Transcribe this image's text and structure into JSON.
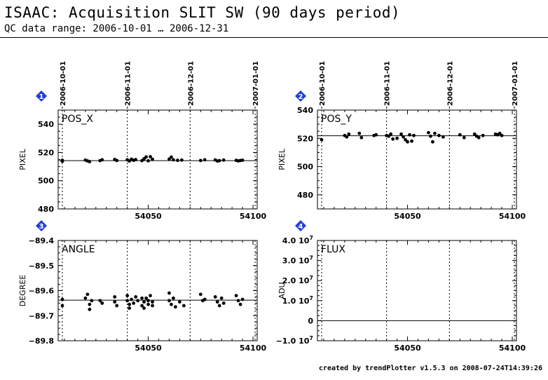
{
  "header": {
    "title": "ISAAC: Acquisition SLIT SW (90 days period)",
    "subtitle": "QC data range: 2006-10-01 … 2006-12-31"
  },
  "footer": {
    "text": "created by trendPlotter v1.5.3 on 2008-07-24T14:39:26"
  },
  "colors": {
    "badge": "#1f3fd6",
    "marker": "#000000"
  },
  "chart_data": [
    {
      "type": "scatter",
      "badge": "1",
      "panel_label": "POS_X",
      "ylabel": "PIXEL",
      "xlim": [
        54007,
        54102
      ],
      "ylim": [
        480,
        550
      ],
      "yticks": [
        {
          "v": 480,
          "label": "480"
        },
        {
          "v": 500,
          "label": "500"
        },
        {
          "v": 520,
          "label": "520"
        },
        {
          "v": 540,
          "label": "540"
        }
      ],
      "xticks": [
        {
          "v": 54050,
          "label": "54050"
        },
        {
          "v": 54100,
          "label": "54100"
        }
      ],
      "top_date_labels": [
        {
          "v": 54009,
          "label": "2006-10-01"
        },
        {
          "v": 54040,
          "label": "2006-11-01"
        },
        {
          "v": 54070,
          "label": "2006-12-01"
        },
        {
          "v": 54101,
          "label": "2007-01-01"
        }
      ],
      "reference_line": 514.2,
      "points": [
        [
          54009,
          513.8
        ],
        [
          54009,
          514.5
        ],
        [
          54020,
          514.6
        ],
        [
          54021,
          514.0
        ],
        [
          54022,
          513.5
        ],
        [
          54027,
          514.2
        ],
        [
          54028,
          514.8
        ],
        [
          54034,
          515.0
        ],
        [
          54035,
          514.3
        ],
        [
          54040,
          514.8
        ],
        [
          54041,
          513.9
        ],
        [
          54042,
          515.2
        ],
        [
          54043,
          514.4
        ],
        [
          54044,
          514.9
        ],
        [
          54047,
          514.2
        ],
        [
          54048,
          515.5
        ],
        [
          54049,
          516.8
        ],
        [
          54050,
          514.1
        ],
        [
          54051,
          517.0
        ],
        [
          54052,
          515.2
        ],
        [
          54060,
          515.3
        ],
        [
          54061,
          516.7
        ],
        [
          54062,
          514.8
        ],
        [
          54064,
          514.4
        ],
        [
          54066,
          514.6
        ],
        [
          54075,
          514.3
        ],
        [
          54077,
          514.8
        ],
        [
          54082,
          514.7
        ],
        [
          54083,
          513.9
        ],
        [
          54084,
          514.2
        ],
        [
          54086,
          514.6
        ],
        [
          54092,
          514.4
        ],
        [
          54093,
          514.0
        ],
        [
          54094,
          514.3
        ],
        [
          54095,
          514.5
        ]
      ]
    },
    {
      "type": "scatter",
      "badge": "2",
      "panel_label": "POS_Y",
      "ylabel": "PIXEL",
      "xlim": [
        54007,
        54102
      ],
      "ylim": [
        470,
        540
      ],
      "yticks": [
        {
          "v": 480,
          "label": "480"
        },
        {
          "v": 500,
          "label": "500"
        },
        {
          "v": 520,
          "label": "520"
        },
        {
          "v": 540,
          "label": "540"
        }
      ],
      "xticks": [
        {
          "v": 54050,
          "label": "54050"
        },
        {
          "v": 54100,
          "label": "54100"
        }
      ],
      "top_date_labels": [
        {
          "v": 54009,
          "label": "2006-10-01"
        },
        {
          "v": 54040,
          "label": "2006-11-01"
        },
        {
          "v": 54070,
          "label": "2006-12-01"
        },
        {
          "v": 54101,
          "label": "2007-01-01"
        }
      ],
      "reference_line": 521.8,
      "points": [
        [
          54009,
          519.0
        ],
        [
          54020,
          522.0
        ],
        [
          54021,
          521.0
        ],
        [
          54022,
          523.0
        ],
        [
          54027,
          523.5
        ],
        [
          54028,
          520.5
        ],
        [
          54034,
          522.0
        ],
        [
          54035,
          522.5
        ],
        [
          54040,
          522.0
        ],
        [
          54041,
          521.5
        ],
        [
          54042,
          523.0
        ],
        [
          54043,
          519.5
        ],
        [
          54045,
          520.0
        ],
        [
          54047,
          523.0
        ],
        [
          54048,
          521.0
        ],
        [
          54049,
          519.0
        ],
        [
          54050,
          517.5
        ],
        [
          54051,
          522.5
        ],
        [
          54052,
          518.0
        ],
        [
          54053,
          522.0
        ],
        [
          54060,
          524.0
        ],
        [
          54061,
          521.5
        ],
        [
          54062,
          517.5
        ],
        [
          54063,
          523.5
        ],
        [
          54065,
          522.0
        ],
        [
          54067,
          521.0
        ],
        [
          54075,
          522.5
        ],
        [
          54077,
          520.5
        ],
        [
          54082,
          523.0
        ],
        [
          54083,
          521.5
        ],
        [
          54084,
          520.5
        ],
        [
          54086,
          522.0
        ],
        [
          54092,
          523.0
        ],
        [
          54093,
          522.5
        ],
        [
          54094,
          523.5
        ],
        [
          54095,
          522.0
        ]
      ]
    },
    {
      "type": "scatter",
      "badge": "3",
      "panel_label": "ANGLE",
      "ylabel": "DEGREE",
      "xlim": [
        54007,
        54102
      ],
      "ylim": [
        -89.8,
        -89.4
      ],
      "yticks": [
        {
          "v": -89.8,
          "label": "−89.8"
        },
        {
          "v": -89.7,
          "label": "−89.7"
        },
        {
          "v": -89.6,
          "label": "−89.6"
        },
        {
          "v": -89.5,
          "label": "−89.5"
        },
        {
          "v": -89.4,
          "label": "−89.4"
        }
      ],
      "xticks": [
        {
          "v": 54050,
          "label": "54050"
        },
        {
          "v": 54100,
          "label": "54100"
        }
      ],
      "date_lines": [
        54009,
        54040,
        54070,
        54101
      ],
      "reference_line": -89.638,
      "points": [
        [
          54009,
          -89.635
        ],
        [
          54009,
          -89.66
        ],
        [
          54020,
          -89.63
        ],
        [
          54021,
          -89.615
        ],
        [
          54022,
          -89.655
        ],
        [
          54022,
          -89.675
        ],
        [
          54023,
          -89.64
        ],
        [
          54027,
          -89.64
        ],
        [
          54028,
          -89.65
        ],
        [
          54034,
          -89.625
        ],
        [
          54034,
          -89.645
        ],
        [
          54035,
          -89.66
        ],
        [
          54040,
          -89.62
        ],
        [
          54040,
          -89.64
        ],
        [
          54041,
          -89.655
        ],
        [
          54041,
          -89.67
        ],
        [
          54042,
          -89.635
        ],
        [
          54043,
          -89.65
        ],
        [
          54044,
          -89.625
        ],
        [
          54045,
          -89.64
        ],
        [
          54047,
          -89.63
        ],
        [
          54047,
          -89.66
        ],
        [
          54048,
          -89.645
        ],
        [
          54048,
          -89.67
        ],
        [
          54049,
          -89.63
        ],
        [
          54050,
          -89.655
        ],
        [
          54050,
          -89.64
        ],
        [
          54051,
          -89.62
        ],
        [
          54052,
          -89.66
        ],
        [
          54052,
          -89.645
        ],
        [
          54060,
          -89.61
        ],
        [
          54060,
          -89.64
        ],
        [
          54061,
          -89.655
        ],
        [
          54062,
          -89.63
        ],
        [
          54063,
          -89.665
        ],
        [
          54065,
          -89.645
        ],
        [
          54067,
          -89.66
        ],
        [
          54075,
          -89.615
        ],
        [
          54076,
          -89.64
        ],
        [
          54077,
          -89.635
        ],
        [
          54082,
          -89.625
        ],
        [
          54083,
          -89.645
        ],
        [
          54084,
          -89.66
        ],
        [
          54085,
          -89.63
        ],
        [
          54086,
          -89.65
        ],
        [
          54092,
          -89.62
        ],
        [
          54093,
          -89.64
        ],
        [
          54094,
          -89.655
        ],
        [
          54095,
          -89.635
        ]
      ]
    },
    {
      "type": "scatter",
      "badge": "4",
      "panel_label": "FLUX",
      "ylabel": "ADU",
      "xlim": [
        54007,
        54102
      ],
      "ylim": [
        -10000000.0,
        40000000.0
      ],
      "yticks": [
        {
          "v": -10000000.0,
          "label": "−1.0 10",
          "exp": "7"
        },
        {
          "v": 0,
          "label": "0",
          "exp": ""
        },
        {
          "v": 10000000.0,
          "label": "1.0 10",
          "exp": "7"
        },
        {
          "v": 20000000.0,
          "label": "2.0 10",
          "exp": "7"
        },
        {
          "v": 30000000.0,
          "label": "3.0 10",
          "exp": "7"
        },
        {
          "v": 40000000.0,
          "label": "4.0 10",
          "exp": "7"
        }
      ],
      "xticks": [
        {
          "v": 54050,
          "label": "54050"
        },
        {
          "v": 54100,
          "label": "54100"
        }
      ],
      "date_lines": [
        54009,
        54040,
        54070,
        54101
      ],
      "reference_line": 0,
      "points": []
    }
  ]
}
